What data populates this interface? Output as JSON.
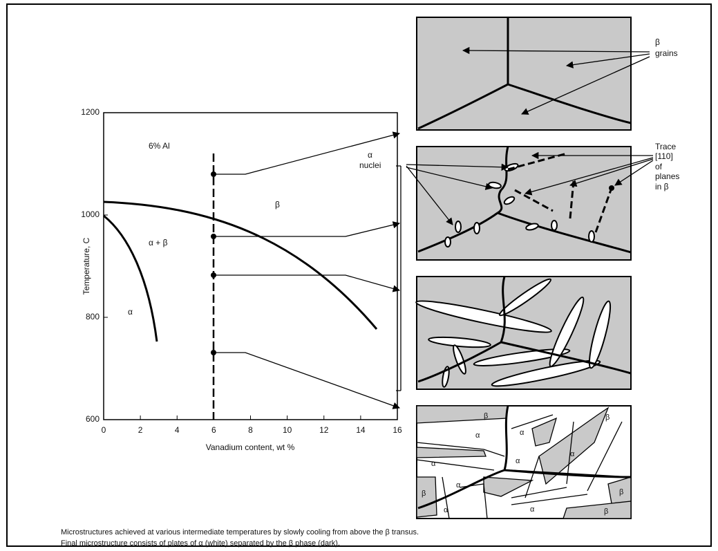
{
  "plot": {
    "y_label": "Temperature, C",
    "x_label": "Vanadium content, wt %",
    "xticks": [
      0,
      2,
      4,
      6,
      8,
      10,
      12,
      14,
      16
    ],
    "yticks": [
      600,
      800,
      1000,
      1200
    ],
    "annotations": [
      "6% Al",
      "β",
      "α + β",
      "α"
    ]
  },
  "callouts": [
    "α",
    "nuclei",
    "β",
    "grains",
    "Trace",
    "[110]",
    "of",
    "planes",
    "in β"
  ],
  "panel_labels": [
    "β",
    "α",
    "β",
    "α",
    "α",
    "α",
    "α",
    "β",
    "α",
    "β",
    "α",
    "α",
    "β"
  ],
  "caption": [
    "Microstructures achieved at various intermediate temperatures by slowly cooling from above the β transus.",
    "Final microstructure consists of plates of α (white) separated by the β phase (dark)."
  ]
}
